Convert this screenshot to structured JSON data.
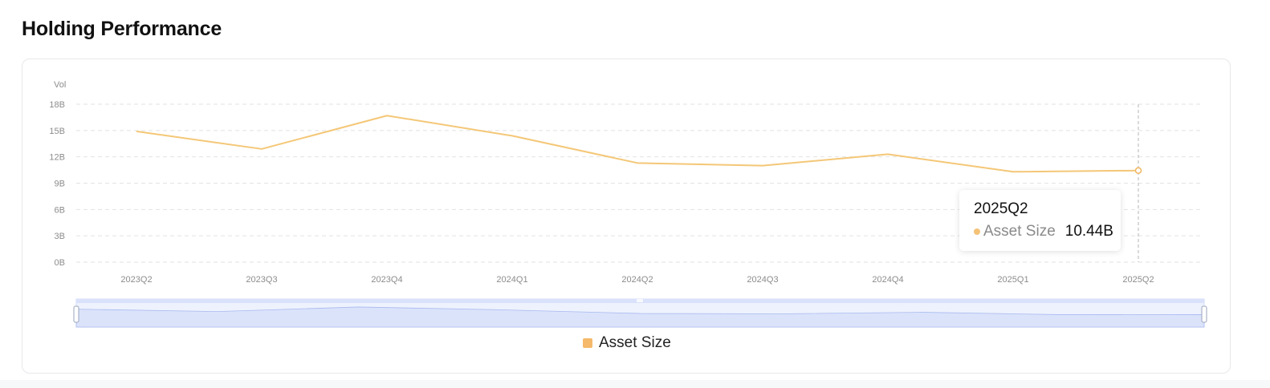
{
  "header": {
    "title": "Holding Performance"
  },
  "chart_data": {
    "type": "line",
    "title": "",
    "ylabel": "Vol",
    "xlabel": "",
    "x": [
      "2023Q2",
      "2023Q3",
      "2023Q4",
      "2024Q1",
      "2024Q2",
      "2024Q3",
      "2024Q4",
      "2025Q1",
      "2025Q2"
    ],
    "yticks": [
      "0B",
      "3B",
      "6B",
      "9B",
      "12B",
      "15B",
      "18B"
    ],
    "ylim": [
      0,
      18
    ],
    "grid": true,
    "series": [
      {
        "name": "Asset Size",
        "values": [
          14.9,
          12.9,
          16.7,
          14.4,
          11.3,
          11.0,
          12.3,
          10.3,
          10.44
        ]
      }
    ],
    "colors": {
      "line": "#f4c777",
      "marker": "#f0b65e",
      "legend": "#f4b96a",
      "zoom_fill": "#dbe3fb",
      "zoom_line": "#a8b9ee"
    },
    "legend": {
      "position": "bottom-center",
      "items": [
        "Asset Size"
      ]
    },
    "tooltip": {
      "category": "2025Q2",
      "series_name": "Asset Size",
      "value_label": "10.44B"
    },
    "data_zoom": {
      "start_percent": 0,
      "end_percent": 100
    }
  }
}
